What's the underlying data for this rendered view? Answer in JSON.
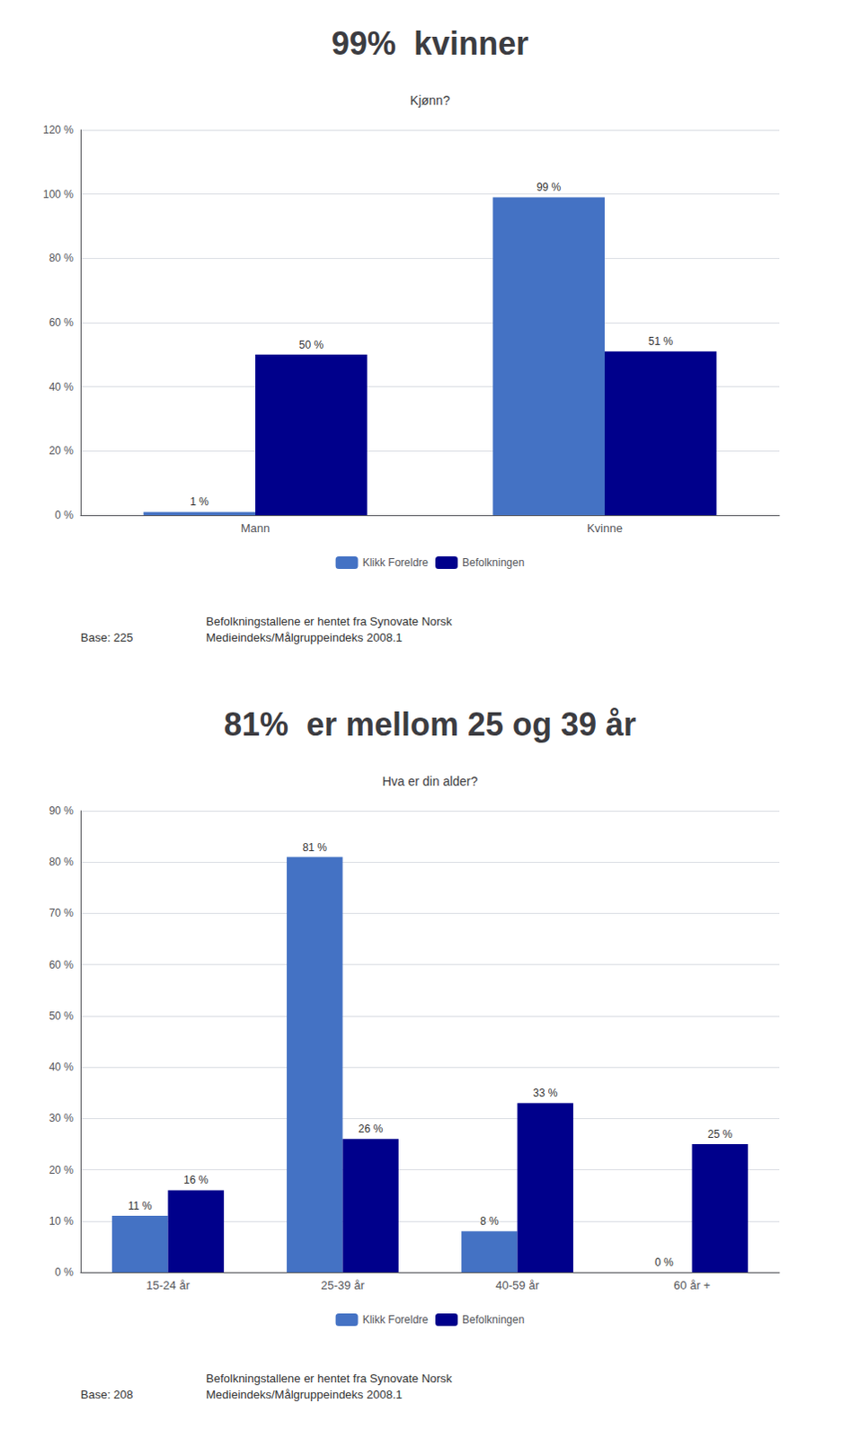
{
  "chart_data": [
    {
      "type": "bar",
      "title": "99%  kvinner",
      "subtitle": "Kjønn?",
      "categories": [
        "Mann",
        "Kvinne"
      ],
      "series": [
        {
          "name": "Klikk Foreldre",
          "color": "#4472c4",
          "values": [
            1,
            99
          ],
          "value_labels": [
            "1 %",
            "99 %"
          ]
        },
        {
          "name": "Befolkningen",
          "color": "#00008b",
          "values": [
            50,
            51
          ],
          "value_labels": [
            "50 %",
            "51 %"
          ]
        }
      ],
      "ylim": [
        0,
        120
      ],
      "yticks": [
        {
          "value": 0,
          "label": "0 %"
        },
        {
          "value": 20,
          "label": "20 %"
        },
        {
          "value": 40,
          "label": "40 %"
        },
        {
          "value": 60,
          "label": "60 %"
        },
        {
          "value": 80,
          "label": "80 %"
        },
        {
          "value": 100,
          "label": "100 %"
        },
        {
          "value": 120,
          "label": "120 %"
        }
      ],
      "grid": true,
      "legend": "bottom",
      "data_labels": true,
      "annotations": [
        "Base: 225",
        "Befolkningstallene er hentet fra Synovate Norsk\nMedieindeks/Målgruppeindeks 2008.1"
      ]
    },
    {
      "type": "bar",
      "title": "81%  er mellom 25 og 39 år",
      "subtitle": "Hva er din alder?",
      "categories": [
        "15-24 år",
        "25-39 år",
        "40-59 år",
        "60 år +"
      ],
      "series": [
        {
          "name": "Klikk Foreldre",
          "color": "#4472c4",
          "values": [
            11,
            81,
            8,
            0
          ],
          "value_labels": [
            "11 %",
            "81 %",
            "8 %",
            "0 %"
          ]
        },
        {
          "name": "Befolkningen",
          "color": "#00008b",
          "values": [
            16,
            26,
            33,
            25
          ],
          "value_labels": [
            "16 %",
            "26 %",
            "33 %",
            "25 %"
          ]
        }
      ],
      "ylim": [
        0,
        90
      ],
      "yticks": [
        {
          "value": 0,
          "label": "0 %"
        },
        {
          "value": 10,
          "label": "10 %"
        },
        {
          "value": 20,
          "label": "20 %"
        },
        {
          "value": 30,
          "label": "30 %"
        },
        {
          "value": 40,
          "label": "40 %"
        },
        {
          "value": 50,
          "label": "50 %"
        },
        {
          "value": 60,
          "label": "60 %"
        },
        {
          "value": 70,
          "label": "70 %"
        },
        {
          "value": 80,
          "label": "80 %"
        },
        {
          "value": 90,
          "label": "90 %"
        }
      ],
      "grid": true,
      "legend": "bottom",
      "data_labels": true,
      "annotations": [
        "Base: 208",
        "Befolkningstallene er hentet fra Synovate Norsk\nMedieindeks/Målgruppeindeks 2008.1"
      ]
    }
  ]
}
